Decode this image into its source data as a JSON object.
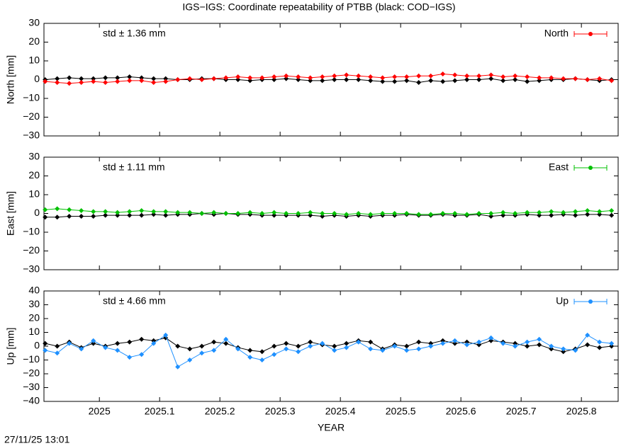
{
  "title": "IGS−IGS: Coordinate repeatability of PTBB (black: COD−IGS)",
  "x_label": "YEAR",
  "timestamp": "27/11/25 13:01",
  "chart_data": [
    {
      "type": "line",
      "ylabel": "North [mm]",
      "annotation": "std ± 1.36 mm",
      "annotation_color": "#ff0000",
      "legend": "upper right",
      "xlim": [
        2024.908,
        2025.861
      ],
      "xticks": [
        2025,
        2025.1,
        2025.2,
        2025.3,
        2025.4,
        2025.5,
        2025.6,
        2025.7,
        2025.8
      ],
      "ylim": [
        -30,
        30
      ],
      "yticks": [
        {
          "value": -30,
          "label": "−30"
        },
        {
          "value": -20,
          "label": "−20"
        },
        {
          "value": -10,
          "label": "−10"
        },
        0,
        10,
        20,
        30
      ],
      "x": [
        2024.91,
        2024.93,
        2024.95,
        2024.97,
        2024.99,
        2025.01,
        2025.03,
        2025.05,
        2025.07,
        2025.09,
        2025.11,
        2025.13,
        2025.15,
        2025.17,
        2025.19,
        2025.21,
        2025.23,
        2025.25,
        2025.27,
        2025.29,
        2025.31,
        2025.33,
        2025.35,
        2025.37,
        2025.39,
        2025.41,
        2025.43,
        2025.45,
        2025.47,
        2025.49,
        2025.51,
        2025.53,
        2025.55,
        2025.57,
        2025.59,
        2025.61,
        2025.63,
        2025.65,
        2025.67,
        2025.69,
        2025.71,
        2025.73,
        2025.75,
        2025.77,
        2025.79,
        2025.81,
        2025.83,
        2025.85
      ],
      "series": [
        {
          "color": "#000000",
          "values": [
            0,
            0.5,
            1,
            0.5,
            0.5,
            1,
            1,
            1.5,
            1,
            0.5,
            0.5,
            0,
            0,
            0.5,
            0.5,
            0,
            0,
            -0.5,
            0,
            0,
            0.5,
            0,
            -0.5,
            -0.5,
            0,
            0,
            0,
            -0.5,
            -1,
            -1,
            -0.5,
            -1.5,
            -0.5,
            -1,
            -0.5,
            0,
            0,
            0.5,
            -0.5,
            0,
            -1,
            -0.5,
            0,
            0,
            0.5,
            0,
            -0.5,
            0
          ]
        },
        {
          "name": "North",
          "color": "#ff0000",
          "values": [
            -1,
            -1.5,
            -2,
            -1.5,
            -1,
            -1.5,
            -1,
            -0.5,
            -0.5,
            -1.5,
            -1,
            0,
            0.5,
            0,
            0.5,
            1,
            1.5,
            1,
            1,
            1.5,
            2,
            1.5,
            1,
            1.5,
            2,
            2.5,
            2,
            1.5,
            1,
            1.5,
            1.5,
            2,
            2,
            3,
            2.5,
            2,
            2,
            2.5,
            1.5,
            2,
            1.5,
            1,
            1,
            0.5,
            0.5,
            0,
            0.5,
            -0.5
          ]
        }
      ]
    },
    {
      "type": "line",
      "ylabel": "East [mm]",
      "annotation": "std ± 1.11 mm",
      "annotation_color": "#00c000",
      "legend": "upper right",
      "xlim": [
        2024.908,
        2025.861
      ],
      "xticks": [
        2025,
        2025.1,
        2025.2,
        2025.3,
        2025.4,
        2025.5,
        2025.6,
        2025.7,
        2025.8
      ],
      "ylim": [
        -30,
        30
      ],
      "yticks": [
        {
          "value": -30,
          "label": "−30"
        },
        {
          "value": -20,
          "label": "−20"
        },
        {
          "value": -10,
          "label": "−10"
        },
        0,
        10,
        20,
        30
      ],
      "x": [
        2024.91,
        2024.93,
        2024.95,
        2024.97,
        2024.99,
        2025.01,
        2025.03,
        2025.05,
        2025.07,
        2025.09,
        2025.11,
        2025.13,
        2025.15,
        2025.17,
        2025.19,
        2025.21,
        2025.23,
        2025.25,
        2025.27,
        2025.29,
        2025.31,
        2025.33,
        2025.35,
        2025.37,
        2025.39,
        2025.41,
        2025.43,
        2025.45,
        2025.47,
        2025.49,
        2025.51,
        2025.53,
        2025.55,
        2025.57,
        2025.59,
        2025.61,
        2025.63,
        2025.65,
        2025.67,
        2025.69,
        2025.71,
        2025.73,
        2025.75,
        2025.77,
        2025.79,
        2025.81,
        2025.83,
        2025.85
      ],
      "series": [
        {
          "color": "#000000",
          "values": [
            -2,
            -2,
            -1.5,
            -1.5,
            -1.5,
            -1,
            -1,
            -1,
            -1,
            -0.5,
            -1,
            -0.5,
            -0.5,
            0,
            -0.5,
            0,
            -0.5,
            -0.5,
            -1,
            -1,
            -1,
            -1,
            -1,
            -1.5,
            -1,
            -1.5,
            -1,
            -1.5,
            -1,
            -1,
            -0.5,
            -1,
            -1,
            -0.5,
            -1,
            -1,
            -0.5,
            -1.5,
            -1,
            -1,
            -0.5,
            -1,
            -1,
            -0.5,
            -1,
            -0.5,
            -0.5,
            -1
          ]
        },
        {
          "name": "East",
          "color": "#00c000",
          "values": [
            2,
            2.5,
            2,
            1.5,
            1,
            1,
            0.5,
            1,
            1.5,
            1,
            1,
            0.5,
            0.5,
            0,
            0.5,
            0,
            0,
            0.5,
            0,
            0.5,
            0,
            0,
            0.5,
            0,
            0,
            -0.5,
            0,
            -0.5,
            0,
            0,
            0,
            -0.5,
            -0.5,
            0,
            0,
            -0.5,
            0,
            0,
            0.5,
            0,
            0.5,
            0.5,
            1,
            0.5,
            1,
            1.5,
            1,
            1.5
          ]
        }
      ]
    },
    {
      "type": "line",
      "ylabel": "Up [mm]",
      "annotation": "std ± 4.66 mm",
      "annotation_color": "#1e90ff",
      "legend": "upper right",
      "xlim": [
        2024.908,
        2025.861
      ],
      "xticks": [
        2025,
        2025.1,
        2025.2,
        2025.3,
        2025.4,
        2025.5,
        2025.6,
        2025.7,
        2025.8
      ],
      "ylim": [
        -40,
        40
      ],
      "yticks": [
        {
          "value": -40,
          "label": "−40"
        },
        {
          "value": -30,
          "label": "−30"
        },
        {
          "value": -20,
          "label": "−20"
        },
        {
          "value": -10,
          "label": "−10"
        },
        0,
        10,
        20,
        30,
        40
      ],
      "x": [
        2024.91,
        2024.93,
        2024.95,
        2024.97,
        2024.99,
        2025.01,
        2025.03,
        2025.05,
        2025.07,
        2025.09,
        2025.11,
        2025.13,
        2025.15,
        2025.17,
        2025.19,
        2025.21,
        2025.23,
        2025.25,
        2025.27,
        2025.29,
        2025.31,
        2025.33,
        2025.35,
        2025.37,
        2025.39,
        2025.41,
        2025.43,
        2025.45,
        2025.47,
        2025.49,
        2025.51,
        2025.53,
        2025.55,
        2025.57,
        2025.59,
        2025.61,
        2025.63,
        2025.65,
        2025.67,
        2025.69,
        2025.71,
        2025.73,
        2025.75,
        2025.77,
        2025.79,
        2025.81,
        2025.83,
        2025.85
      ],
      "series": [
        {
          "color": "#000000",
          "values": [
            2,
            0,
            3,
            -1,
            2,
            0,
            2,
            3,
            5,
            4,
            6,
            0,
            -2,
            0,
            3,
            2,
            -1,
            -3,
            -4,
            0,
            2,
            0,
            3,
            1,
            0,
            2,
            4,
            3,
            -2,
            1,
            0,
            3,
            2,
            4,
            2,
            3,
            1,
            4,
            3,
            2,
            0,
            1,
            -2,
            -4,
            -2,
            1,
            -1,
            0
          ]
        },
        {
          "name": "Up",
          "color": "#1e90ff",
          "values": [
            -3,
            -5,
            2,
            -2,
            4,
            -1,
            -3,
            -8,
            -6,
            2,
            8,
            -15,
            -10,
            -5,
            -3,
            5,
            -2,
            -8,
            -10,
            -6,
            -2,
            -4,
            0,
            2,
            -3,
            -1,
            3,
            -2,
            -3,
            0,
            -3,
            -2,
            0,
            2,
            4,
            1,
            3,
            6,
            2,
            0,
            3,
            5,
            0,
            -2,
            -3,
            8,
            3,
            2
          ]
        }
      ]
    }
  ]
}
